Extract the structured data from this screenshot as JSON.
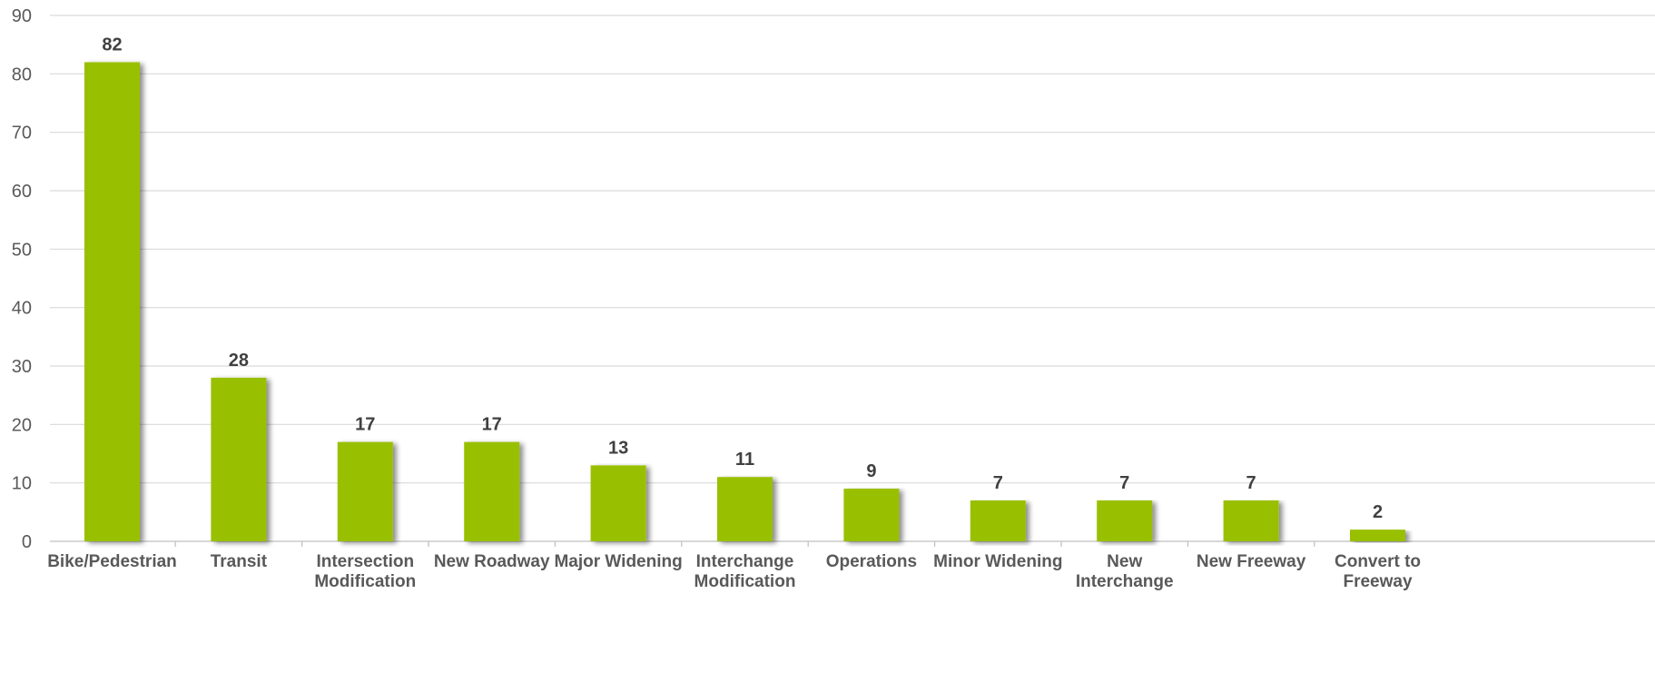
{
  "chart_data": {
    "type": "bar",
    "categories": [
      "Bike/Pedestrian",
      "Transit",
      "Intersection Modification",
      "New Roadway",
      "Major Widening",
      "Interchange Modification",
      "Operations",
      "Minor Widening",
      "New Interchange",
      "New Freeway",
      "Convert to Freeway"
    ],
    "category_lines": [
      [
        "Bike/Pedestrian"
      ],
      [
        "Transit"
      ],
      [
        "Intersection",
        "Modification"
      ],
      [
        "New Roadway"
      ],
      [
        "Major Widening"
      ],
      [
        "Interchange",
        "Modification"
      ],
      [
        "Operations"
      ],
      [
        "Minor Widening"
      ],
      [
        "New",
        "Interchange"
      ],
      [
        "New Freeway"
      ],
      [
        "Convert to",
        "Freeway"
      ]
    ],
    "values": [
      82,
      28,
      17,
      17,
      13,
      11,
      9,
      7,
      7,
      7,
      2
    ],
    "data_labels": [
      "82",
      "28",
      "17",
      "17",
      "13",
      "11",
      "9",
      "7",
      "7",
      "7",
      "2"
    ],
    "yticks": [
      0,
      10,
      20,
      30,
      40,
      50,
      60,
      70,
      80,
      90
    ],
    "ylim": [
      0,
      90
    ],
    "title": "",
    "xlabel": "",
    "ylabel": "",
    "grid": true,
    "legend": "none",
    "colors": {
      "bar": "#99c000",
      "bar_shadow": "#7a8a55",
      "grid": "#d9d9d9",
      "axis": "#bfbfbf",
      "tick_text": "#595959",
      "label_text": "#404040"
    }
  }
}
